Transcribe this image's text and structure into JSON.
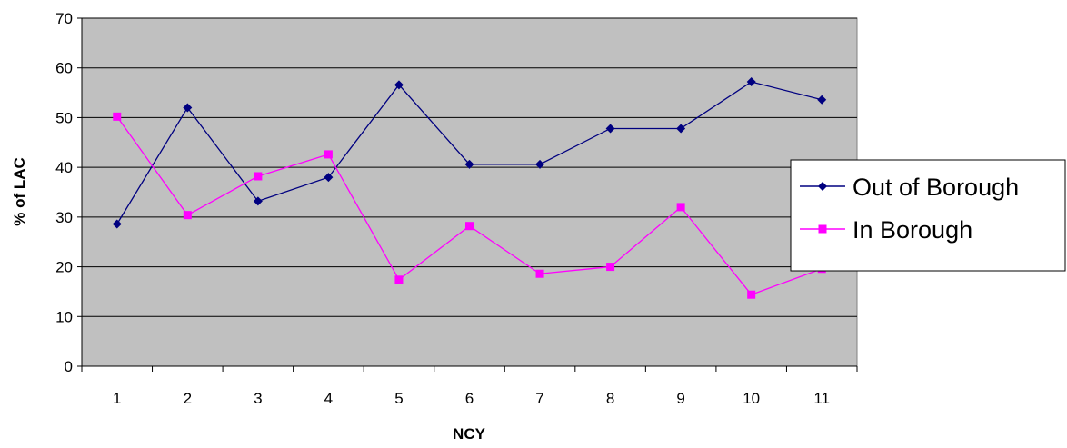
{
  "chart_data": {
    "type": "line",
    "xlabel": "NCY",
    "ylabel": "% of LAC",
    "ylim": [
      0,
      70
    ],
    "yticks": [
      0,
      10,
      20,
      30,
      40,
      50,
      60,
      70
    ],
    "categories": [
      "1",
      "2",
      "3",
      "4",
      "5",
      "6",
      "7",
      "8",
      "9",
      "10",
      "11"
    ],
    "grid": "horizontal",
    "legend_position": "right",
    "plot_background": "#c0c0c0",
    "series": [
      {
        "name": "Out of Borough",
        "color": "#000080",
        "marker": "diamond",
        "values": [
          28.6,
          52,
          33.2,
          38,
          56.6,
          40.6,
          40.6,
          47.8,
          47.8,
          57.2,
          53.6
        ]
      },
      {
        "name": "In Borough",
        "color": "#ff00ff",
        "marker": "square",
        "values": [
          50.2,
          30.4,
          38.2,
          42.6,
          17.4,
          28.2,
          18.6,
          20,
          32,
          14.4,
          19.6
        ]
      }
    ]
  }
}
